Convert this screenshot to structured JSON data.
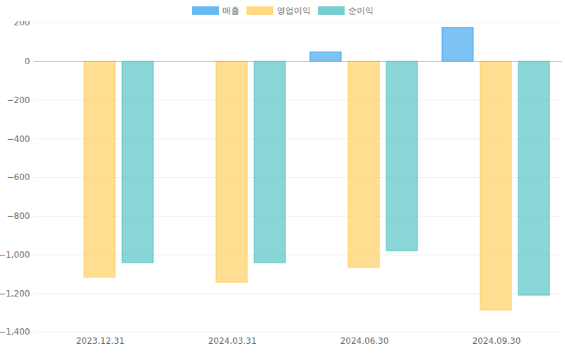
{
  "chart_data": {
    "type": "bar",
    "categories": [
      "2023.12.31",
      "2024.03.31",
      "2024.06.30",
      "2024.09.30"
    ],
    "series": [
      {
        "name": "매출",
        "color": "#36a2eb",
        "values": [
          null,
          null,
          48,
          175
        ]
      },
      {
        "name": "영업이익",
        "color": "#ffcd56",
        "values": [
          -1118,
          -1144,
          -1067,
          -1287
        ]
      },
      {
        "name": "순이익",
        "color": "#4bc0c0",
        "values": [
          -1042,
          -1042,
          -980,
          -1210
        ]
      }
    ],
    "ylim": [
      -1400,
      200
    ],
    "yticks": [
      -1400,
      -1200,
      -1000,
      -800,
      -600,
      -400,
      -200,
      0,
      200
    ],
    "grid": true,
    "legend": "top"
  }
}
